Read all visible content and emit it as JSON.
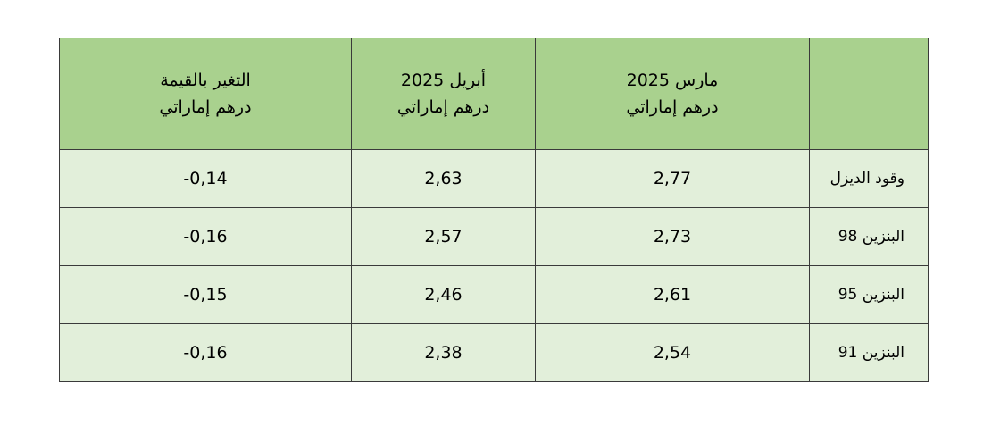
{
  "table": {
    "header": [
      {
        "line1": "مارس 2025",
        "line2": "درهم إماراتي"
      },
      {
        "line1": "أبريل 2025",
        "line2": "درهم إماراتي"
      },
      {
        "line1": "التغير بالقيمة",
        "line2": "درهم إماراتي"
      }
    ],
    "rows": [
      [
        "وقود الديزل",
        "2,77",
        "2,63",
        "-0,14"
      ],
      [
        "البنزين 98",
        "2,73",
        "2,57",
        "-0,16"
      ],
      [
        "البنزين 95",
        "2,61",
        "2,46",
        "-0,15"
      ],
      [
        "البنزين 91",
        "2,54",
        "2,38",
        "-0,16"
      ]
    ]
  }
}
